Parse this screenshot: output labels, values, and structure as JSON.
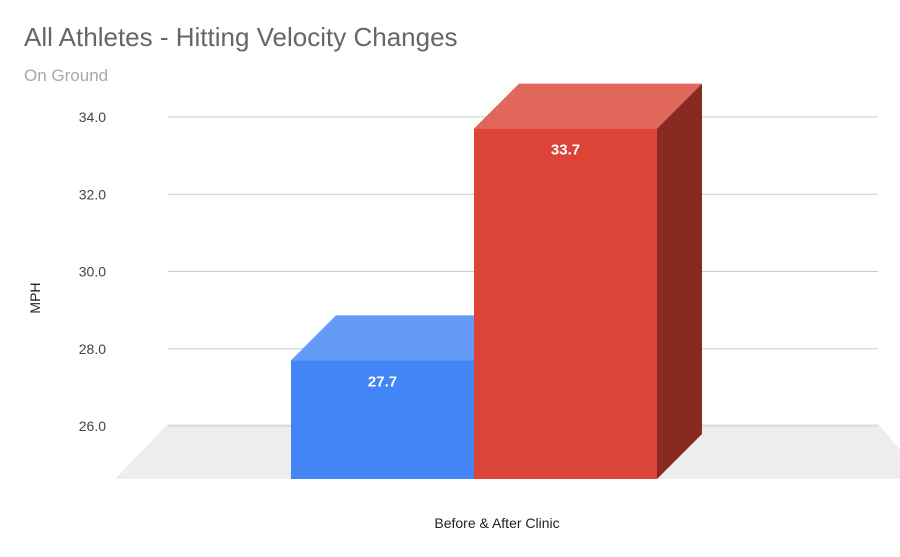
{
  "chart_data": {
    "type": "bar",
    "title": "All Athletes - Hitting Velocity Changes",
    "subtitle": "On Ground",
    "xlabel": "Before & After Clinic",
    "ylabel": "MPH",
    "ylim": [
      25,
      34
    ],
    "yticks": [
      "26.0",
      "28.0",
      "30.0",
      "32.0",
      "34.0"
    ],
    "grid": true,
    "style": "3d",
    "series": [
      {
        "values": [
          27.7
        ],
        "data_labels": [
          "27.7"
        ],
        "color": "#4285f4"
      },
      {
        "values": [
          33.7
        ],
        "data_labels": [
          "33.7"
        ],
        "color": "#db4437"
      }
    ]
  }
}
